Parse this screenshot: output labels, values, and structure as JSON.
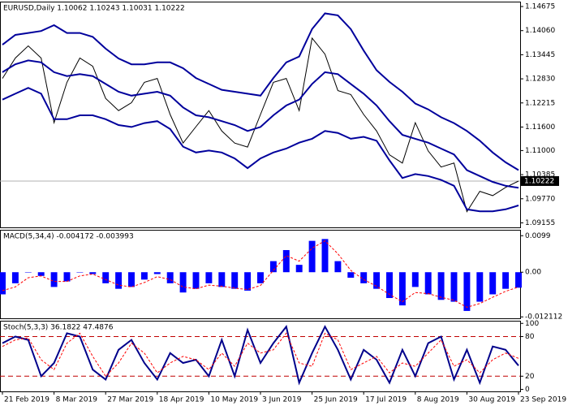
{
  "chart_data": [
    {
      "type": "line",
      "title": "EURUSD,Daily 1.10062 1.10243 1.10031 1.10222",
      "ylim": [
        1.0904,
        1.148
      ],
      "yticks": [
        1.14675,
        {
          "value": 1.1406,
          "label": "1.14060"
        },
        1.13445,
        {
          "value": 1.1283,
          "label": "1.12830"
        },
        1.12215,
        {
          "value": 1.116,
          "label": "1.11600"
        },
        {
          "value": 1.11,
          "label": "1.11000"
        },
        1.10385,
        {
          "value": 1.0977,
          "label": "1.09770"
        },
        1.09155
      ],
      "last_price": 1.10222,
      "series": [
        {
          "kind": "line",
          "color": "#000000",
          "values": [
            1.1284,
            1.1336,
            1.1367,
            1.1336,
            1.1171,
            1.1274,
            1.1336,
            1.1315,
            1.1233,
            1.1202,
            1.1222,
            1.1274,
            1.1284,
            1.1192,
            1.1119,
            1.1161,
            1.1202,
            1.115,
            1.1119,
            1.1109,
            1.1192,
            1.1274,
            1.1284,
            1.1202,
            1.1387,
            1.1346,
            1.1253,
            1.1243,
            1.1192,
            1.115,
            1.1089,
            1.1068,
            1.1171,
            1.1099,
            1.1058,
            1.1068,
            1.0944,
            1.0996,
            1.0985,
            1.1006,
            1.10222
          ]
        },
        {
          "kind": "line",
          "color": "#00009c",
          "values": [
            1.137,
            1.1395,
            1.14,
            1.1405,
            1.142,
            1.14,
            1.14,
            1.139,
            1.136,
            1.1335,
            1.132,
            1.132,
            1.1325,
            1.1325,
            1.131,
            1.1285,
            1.127,
            1.1255,
            1.125,
            1.1245,
            1.124,
            1.1285,
            1.1325,
            1.134,
            1.141,
            1.145,
            1.1445,
            1.141,
            1.1355,
            1.1305,
            1.1275,
            1.125,
            1.122,
            1.1205,
            1.1185,
            1.117,
            1.115,
            1.1125,
            1.1095,
            1.107,
            1.105
          ]
        },
        {
          "kind": "line",
          "color": "#00009c",
          "values": [
            1.13,
            1.132,
            1.133,
            1.1325,
            1.13,
            1.129,
            1.1295,
            1.129,
            1.127,
            1.125,
            1.124,
            1.1245,
            1.125,
            1.124,
            1.121,
            1.119,
            1.1185,
            1.1175,
            1.1165,
            1.115,
            1.116,
            1.119,
            1.1215,
            1.123,
            1.127,
            1.13,
            1.1295,
            1.127,
            1.1245,
            1.1215,
            1.1175,
            1.114,
            1.113,
            1.112,
            1.1105,
            1.109,
            1.105,
            1.1035,
            1.102,
            1.101,
            1.1005
          ]
        },
        {
          "kind": "line",
          "color": "#00009c",
          "values": [
            1.123,
            1.1245,
            1.126,
            1.1245,
            1.118,
            1.118,
            1.119,
            1.119,
            1.118,
            1.1165,
            1.116,
            1.117,
            1.1175,
            1.1155,
            1.111,
            1.1095,
            1.11,
            1.1095,
            1.108,
            1.1055,
            1.108,
            1.1095,
            1.1105,
            1.112,
            1.113,
            1.115,
            1.1145,
            1.113,
            1.1135,
            1.1125,
            1.1075,
            1.103,
            1.104,
            1.1035,
            1.1025,
            1.101,
            1.095,
            1.0945,
            1.0945,
            1.095,
            1.096
          ]
        }
      ]
    },
    {
      "type": "bar",
      "title": "MACD(5,34,4) -0.004172 -0.003993",
      "ylim": [
        -0.0125,
        0.0115
      ],
      "yticks": [
        0.0099,
        {
          "value": 0,
          "label": "0.00"
        },
        -0.012112
      ],
      "series": [
        {
          "kind": "bar",
          "color": "#0000ff",
          "values": [
            -0.006,
            -0.003,
            0,
            -0.001,
            -0.004,
            -0.0025,
            0,
            -0.0005,
            -0.003,
            -0.0045,
            -0.004,
            -0.002,
            -0.0005,
            -0.003,
            -0.0055,
            -0.0045,
            -0.003,
            -0.004,
            -0.0045,
            -0.005,
            -0.003,
            0.003,
            0.006,
            0.002,
            0.0085,
            0.009,
            0.003,
            -0.0015,
            -0.003,
            -0.0045,
            -0.007,
            -0.009,
            -0.004,
            -0.006,
            -0.0075,
            -0.008,
            -0.0105,
            -0.008,
            -0.006,
            -0.0045,
            -0.0042
          ]
        },
        {
          "kind": "line",
          "dash": true,
          "color": "#ff0000",
          "values": [
            -0.005,
            -0.004,
            -0.0015,
            -0.001,
            -0.0025,
            -0.0025,
            -0.001,
            -0.0005,
            -0.002,
            -0.0035,
            -0.004,
            -0.0028,
            -0.0012,
            -0.002,
            -0.004,
            -0.0045,
            -0.0035,
            -0.0038,
            -0.0043,
            -0.0047,
            -0.0036,
            0.0005,
            0.0045,
            0.003,
            0.0065,
            0.0085,
            0.005,
            0.0005,
            -0.002,
            -0.0038,
            -0.006,
            -0.008,
            -0.0055,
            -0.0058,
            -0.0068,
            -0.0076,
            -0.0095,
            -0.0085,
            -0.0068,
            -0.0052,
            -0.004
          ]
        }
      ]
    },
    {
      "type": "line",
      "title": "Stoch(5,3,3) 36.1822 47.4876",
      "ylim": [
        -3,
        104
      ],
      "yticks": [
        100,
        80,
        20,
        0
      ],
      "levels": [
        80,
        20
      ],
      "categories": [
        "21 Feb 2019",
        null,
        null,
        null,
        "8 Mar 2019",
        null,
        null,
        null,
        "27 Mar 2019",
        null,
        null,
        null,
        "18 Apr 2019",
        null,
        null,
        null,
        "10 May 2019",
        null,
        null,
        null,
        "3 Jun 2019",
        null,
        null,
        null,
        "25 Jun 2019",
        null,
        null,
        null,
        "17 Jul 2019",
        null,
        null,
        null,
        "8 Aug 2019",
        null,
        null,
        null,
        "30 Aug 2019",
        null,
        null,
        null,
        "23 Sep 2019"
      ],
      "series": [
        {
          "kind": "line",
          "color": "#00008b",
          "values": [
            70,
            80,
            75,
            20,
            40,
            85,
            80,
            30,
            15,
            60,
            75,
            40,
            15,
            55,
            40,
            45,
            20,
            75,
            20,
            90,
            40,
            70,
            95,
            10,
            55,
            95,
            60,
            15,
            60,
            45,
            10,
            60,
            20,
            70,
            80,
            15,
            60,
            10,
            65,
            60,
            36
          ]
        },
        {
          "kind": "line",
          "dash": true,
          "color": "#ff0000",
          "values": [
            65,
            75,
            78,
            45,
            30,
            70,
            85,
            50,
            20,
            40,
            70,
            55,
            25,
            40,
            50,
            45,
            30,
            55,
            35,
            70,
            55,
            60,
            85,
            40,
            35,
            85,
            75,
            30,
            40,
            50,
            25,
            40,
            35,
            55,
            75,
            35,
            45,
            25,
            45,
            55,
            47
          ]
        }
      ]
    }
  ]
}
